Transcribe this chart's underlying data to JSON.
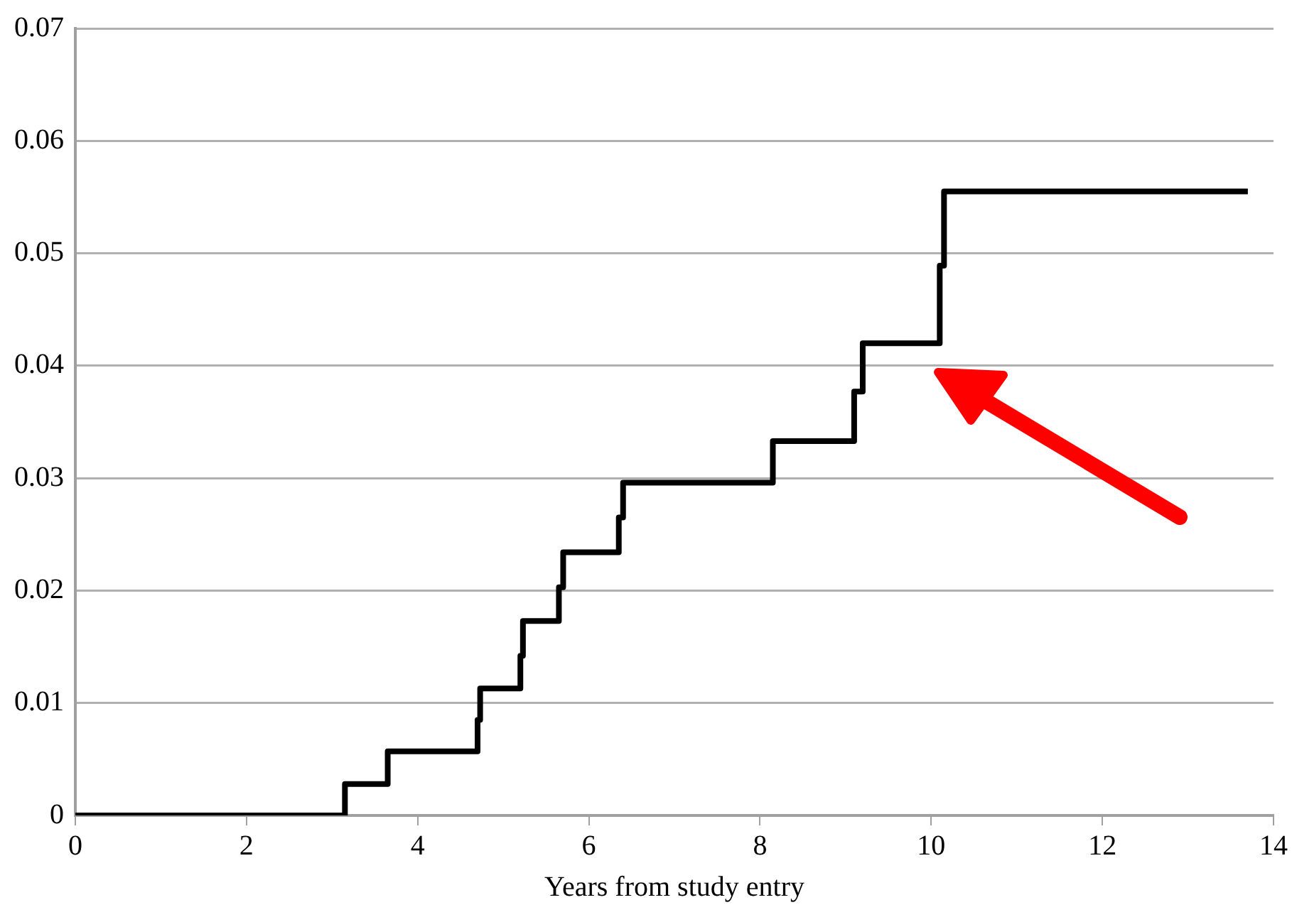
{
  "chart_data": {
    "type": "step",
    "xlabel": "Years from study entry",
    "x": [
      0,
      3.15,
      3.65,
      4.7,
      4.73,
      5.2,
      5.23,
      5.65,
      5.7,
      6.35,
      6.4,
      8.15,
      9.1,
      9.2,
      10.1,
      10.15,
      13.7
    ],
    "series": [
      {
        "color": "#000000",
        "values": [
          0,
          0.0028,
          0.0057,
          0.0085,
          0.0113,
          0.0142,
          0.0173,
          0.0203,
          0.0234,
          0.0265,
          0.0296,
          0.0333,
          0.0377,
          0.042,
          0.0489,
          0.0555,
          0.0555
        ]
      }
    ],
    "xlim": [
      0,
      14
    ],
    "xticks": [
      0,
      2,
      4,
      6,
      8,
      10,
      12,
      14
    ],
    "ylim": [
      0,
      0.07
    ],
    "yticks": [
      0,
      0.01,
      0.02,
      0.03,
      0.04,
      0.05,
      0.06,
      0.07
    ],
    "grid": "y",
    "legend": false,
    "marker": "none",
    "line_style": "solid"
  }
}
